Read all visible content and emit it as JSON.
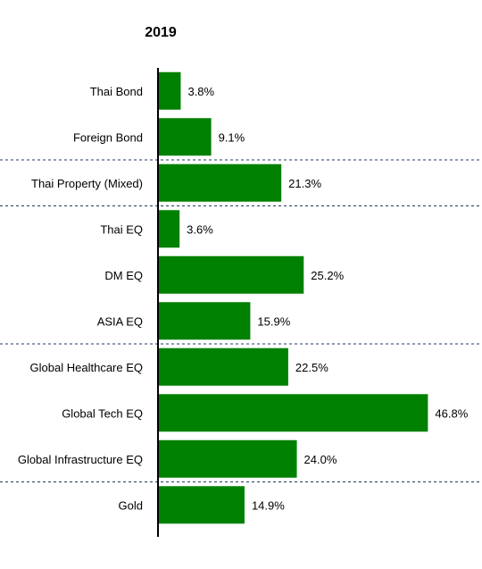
{
  "chart_data": {
    "type": "bar",
    "orientation": "horizontal",
    "title": "2019",
    "xlabel": "",
    "ylabel": "",
    "categories": [
      "Thai Bond",
      "Foreign Bond",
      "Thai Property (Mixed)",
      "Thai EQ",
      "DM EQ",
      "ASIA EQ",
      "Global Healthcare EQ",
      "Global Tech EQ",
      "Global Infrastructure EQ",
      "Gold"
    ],
    "values": [
      3.8,
      9.1,
      21.3,
      3.6,
      25.2,
      15.9,
      22.5,
      46.8,
      24.0,
      14.9
    ],
    "value_labels": [
      "3.8%",
      "9.1%",
      "21.3%",
      "3.6%",
      "25.2%",
      "15.9%",
      "22.5%",
      "46.8%",
      "24.0%",
      "14.9%"
    ],
    "xlim": [
      0,
      50
    ],
    "grid": false,
    "group_separators_after": [
      "Foreign Bond",
      "Thai Property (Mixed)",
      "ASIA EQ",
      "Global Infrastructure EQ"
    ],
    "bar_color": "#008000",
    "separator_color": "#1f3864"
  }
}
